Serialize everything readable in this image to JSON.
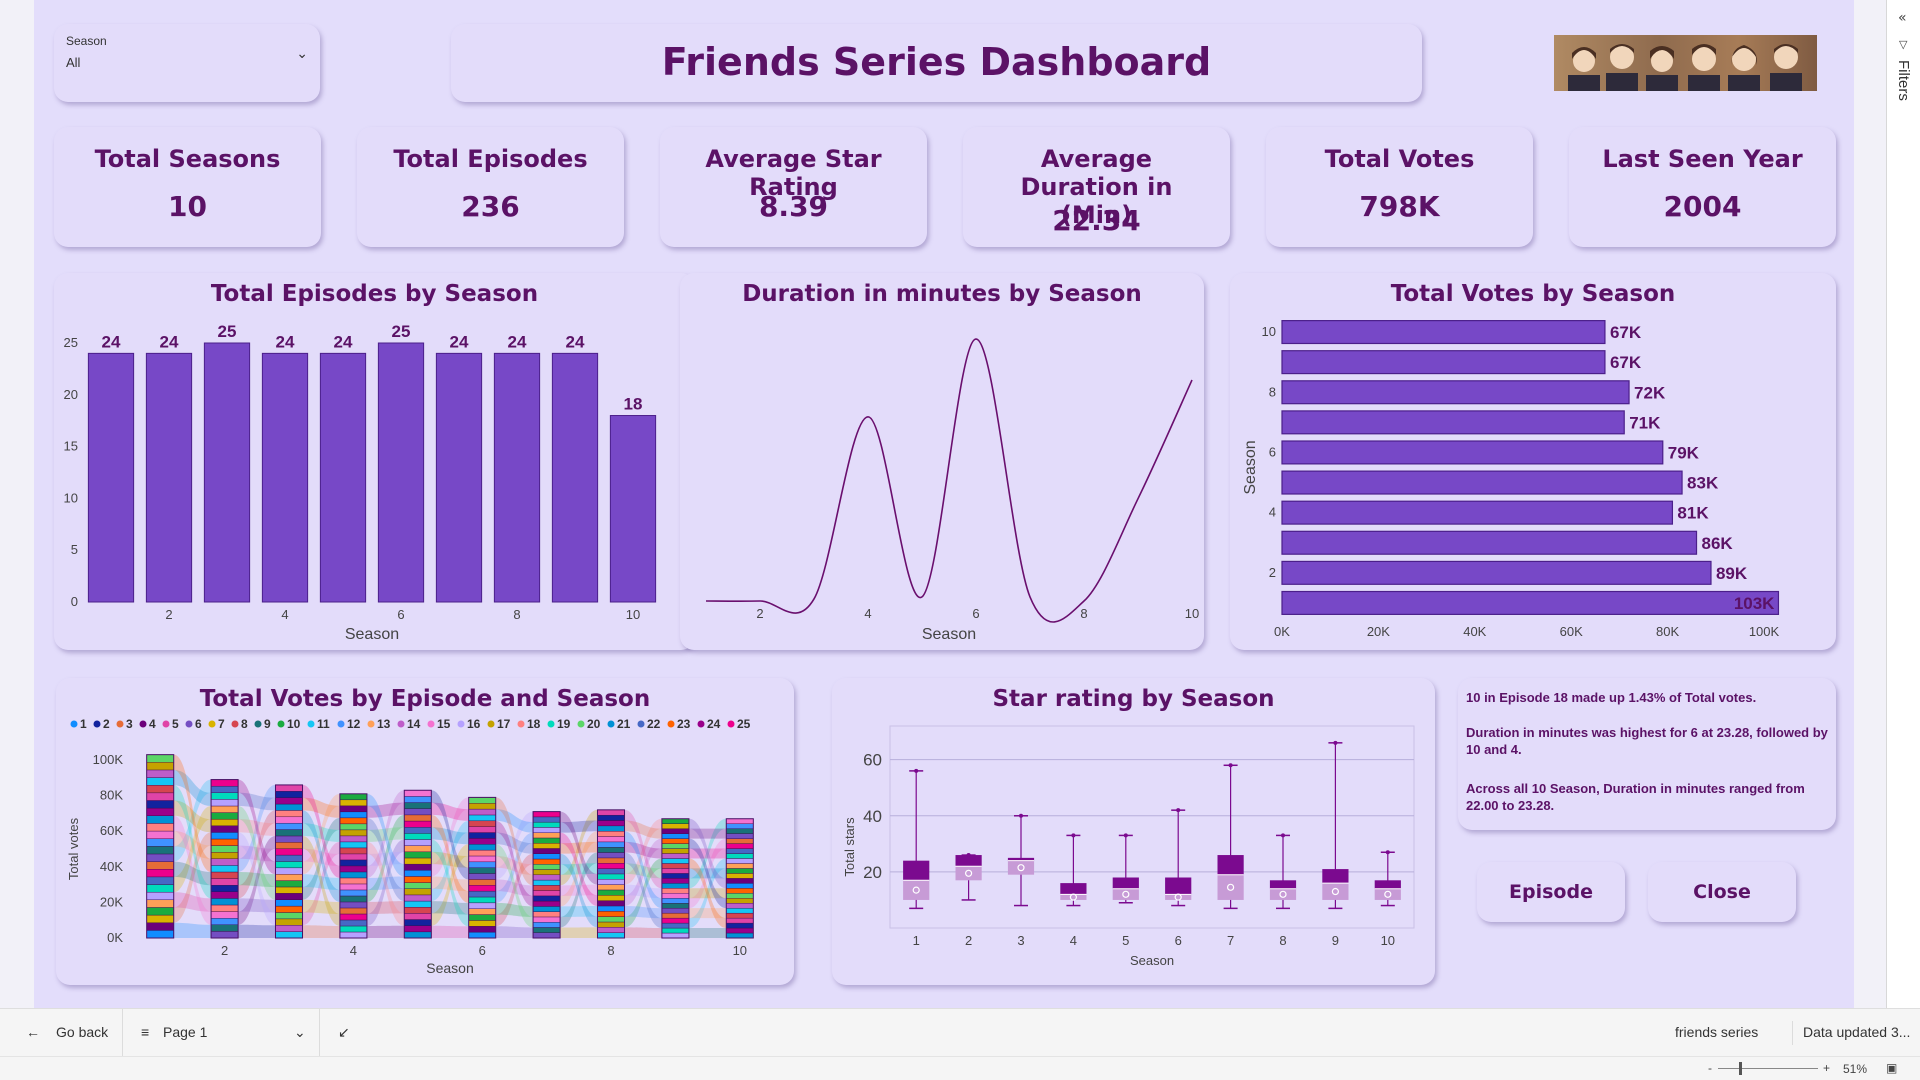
{
  "slicer": {
    "label": "Season",
    "value": "All"
  },
  "dashboard_title": "Friends Series Dashboard",
  "kpis": [
    {
      "title": "Total Seasons",
      "value": "10"
    },
    {
      "title": "Total Episodes",
      "value": "236"
    },
    {
      "title": "Average Star Rating",
      "value": "8.39"
    },
    {
      "title": "Average Duration in (Min)",
      "value": "22.34"
    },
    {
      "title": "Total Votes",
      "value": "798K"
    },
    {
      "title": "Last Seen Year",
      "value": "2004"
    }
  ],
  "insights": [
    "10 in Episode  18 made up 1.43% of Total votes.",
    "Duration in minutes was highest for 6 at 23.28, followed by 10 and 4.",
    "Across all 10 Season,  Duration in minutes ranged from 22.00 to 23.28."
  ],
  "buttons": {
    "episode": "Episode",
    "close": "Close"
  },
  "filters_pane": {
    "label": "Filters"
  },
  "statusbar": {
    "go_back": "Go back",
    "page": "Page 1",
    "report_name": "friends series",
    "data_updated": "Data updated 3...",
    "zoom": "51%",
    "zoom_minus": "-",
    "zoom_plus": "+"
  },
  "colors": {
    "bar": "#7748c7",
    "bar_border": "#4b1f8a",
    "text": "#5b1266",
    "line": "#6a0f6e",
    "box": "#7b0a8f"
  },
  "chart_data": [
    {
      "id": "episodes_by_season",
      "type": "bar",
      "title": "Total Episodes by Season",
      "xlabel": "Season",
      "ylabel": "",
      "categories": [
        "1",
        "2",
        "3",
        "4",
        "5",
        "6",
        "7",
        "8",
        "9",
        "10"
      ],
      "values": [
        24,
        24,
        25,
        24,
        24,
        25,
        24,
        24,
        24,
        18
      ],
      "x_ticks": [
        "2",
        "4",
        "6",
        "8",
        "10"
      ],
      "y_ticks": [
        "0",
        "5",
        "10",
        "15",
        "20",
        "25"
      ],
      "ylim": [
        0,
        25
      ]
    },
    {
      "id": "duration_by_season",
      "type": "line",
      "title": "Duration in minutes by Season",
      "xlabel": "Season",
      "x": [
        1,
        2,
        3,
        4,
        5,
        6,
        7,
        8,
        9,
        10
      ],
      "values": [
        22.0,
        22.0,
        22.01,
        22.9,
        22.02,
        23.28,
        22.02,
        22.0,
        22.5,
        23.08
      ],
      "x_ticks": [
        "2",
        "4",
        "6",
        "8",
        "10"
      ]
    },
    {
      "id": "votes_by_season",
      "type": "bar",
      "orientation": "horizontal",
      "title": "Total Votes by Season",
      "ylabel": "Season",
      "categories": [
        "10",
        "9",
        "8",
        "7",
        "6",
        "5",
        "4",
        "3",
        "2",
        "1"
      ],
      "values": [
        67,
        67,
        72,
        71,
        79,
        83,
        81,
        86,
        89,
        103
      ],
      "labels": [
        "67K",
        "67K",
        "72K",
        "71K",
        "79K",
        "83K",
        "81K",
        "86K",
        "89K",
        "103K"
      ],
      "y_ticks": [
        "10",
        "8",
        "6",
        "4",
        "2"
      ],
      "x_ticks": [
        "0K",
        "20K",
        "40K",
        "60K",
        "80K",
        "100K"
      ],
      "xlim": [
        0,
        100
      ]
    },
    {
      "id": "votes_by_episode_season",
      "type": "bar",
      "stacked": true,
      "title": "Total Votes by Episode and Season",
      "xlabel": "Season",
      "ylabel": "Total votes",
      "legend": [
        "1",
        "2",
        "3",
        "4",
        "5",
        "6",
        "7",
        "8",
        "9",
        "10",
        "11",
        "12",
        "13",
        "14",
        "15",
        "16",
        "17",
        "18",
        "19",
        "20",
        "21",
        "22",
        "23",
        "24",
        "25"
      ],
      "legend_colors": [
        "#118dff",
        "#12239e",
        "#e66c37",
        "#6b007b",
        "#e044a7",
        "#744ec2",
        "#d9b300",
        "#d64550",
        "#197278",
        "#1aab40",
        "#15c6f4",
        "#4092ff",
        "#ffa058",
        "#be5dc9",
        "#f472d0",
        "#b5a1ff",
        "#c4a200",
        "#ff8080",
        "#00dbbc",
        "#5bd667",
        "#0091d5",
        "#4668c5",
        "#ff6300",
        "#99008a",
        "#ec008c"
      ],
      "categories": [
        "1",
        "2",
        "3",
        "4",
        "5",
        "6",
        "7",
        "8",
        "9",
        "10"
      ],
      "totals": [
        103,
        89,
        86,
        81,
        83,
        79,
        71,
        72,
        67,
        67
      ],
      "x_ticks": [
        "2",
        "4",
        "6",
        "8",
        "10"
      ],
      "y_ticks": [
        "0K",
        "20K",
        "40K",
        "60K",
        "80K",
        "100K"
      ],
      "ylim": [
        0,
        100
      ]
    },
    {
      "id": "star_rating_by_season",
      "type": "box",
      "title": "Star rating by Season",
      "xlabel": "Season",
      "ylabel": "Total stars",
      "categories": [
        "1",
        "2",
        "3",
        "4",
        "5",
        "6",
        "7",
        "8",
        "9",
        "10"
      ],
      "boxes": [
        {
          "min": 7,
          "q1": 10,
          "median": 17,
          "q3": 24,
          "max": 56
        },
        {
          "min": 10,
          "q1": 17,
          "median": 22,
          "q3": 26,
          "max": 26
        },
        {
          "min": 8,
          "q1": 19,
          "median": 24,
          "q3": 25,
          "max": 40
        },
        {
          "min": 8,
          "q1": 10,
          "median": 12,
          "q3": 16,
          "max": 33
        },
        {
          "min": 9,
          "q1": 10,
          "median": 14,
          "q3": 18,
          "max": 33
        },
        {
          "min": 8,
          "q1": 10,
          "median": 12,
          "q3": 18,
          "max": 42
        },
        {
          "min": 7,
          "q1": 10,
          "median": 19,
          "q3": 26,
          "max": 58
        },
        {
          "min": 7,
          "q1": 10,
          "median": 14,
          "q3": 17,
          "max": 33
        },
        {
          "min": 7,
          "q1": 10,
          "median": 16,
          "q3": 21,
          "max": 66
        },
        {
          "min": 8,
          "q1": 10,
          "median": 14,
          "q3": 17,
          "max": 27
        }
      ],
      "y_ticks": [
        "20",
        "40",
        "60"
      ],
      "ylim": [
        0,
        72
      ]
    }
  ]
}
